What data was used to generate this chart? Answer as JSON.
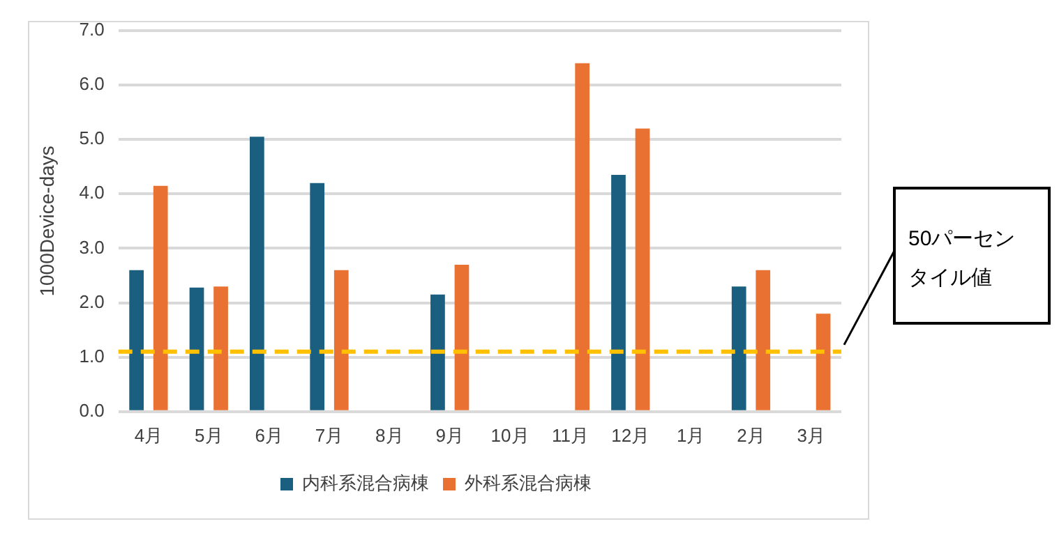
{
  "chart_data": {
    "type": "bar",
    "ylabel": "1000Device-days",
    "categories": [
      "4月",
      "5月",
      "6月",
      "7月",
      "8月",
      "9月",
      "10月",
      "11月",
      "12月",
      "1月",
      "2月",
      "3月"
    ],
    "series": [
      {
        "name": "内科系混合病棟",
        "color": "#1a5f7f",
        "values": [
          2.6,
          2.28,
          5.05,
          4.2,
          null,
          2.15,
          null,
          null,
          4.35,
          null,
          2.3,
          null
        ]
      },
      {
        "name": "外科系混合病棟",
        "color": "#e97132",
        "values": [
          4.15,
          2.3,
          null,
          2.6,
          null,
          2.7,
          null,
          6.4,
          5.2,
          null,
          2.6,
          1.8
        ]
      }
    ],
    "ylim": [
      0,
      7
    ],
    "yticks": [
      {
        "value": 0,
        "label": "0.0"
      },
      {
        "value": 1,
        "label": "1.0"
      },
      {
        "value": 2,
        "label": "2.0"
      },
      {
        "value": 3,
        "label": "3.0"
      },
      {
        "value": 4,
        "label": "4.0"
      },
      {
        "value": 5,
        "label": "5.0"
      },
      {
        "value": 6,
        "label": "6.0"
      },
      {
        "value": 7,
        "label": "7.0"
      }
    ],
    "grid": "y",
    "legend": "bottom",
    "ref_lines": [
      {
        "axis": "y",
        "value": 1.1,
        "label": "50パーセンタイル値",
        "color": "#ffc000",
        "line_style": "dashed"
      }
    ]
  }
}
